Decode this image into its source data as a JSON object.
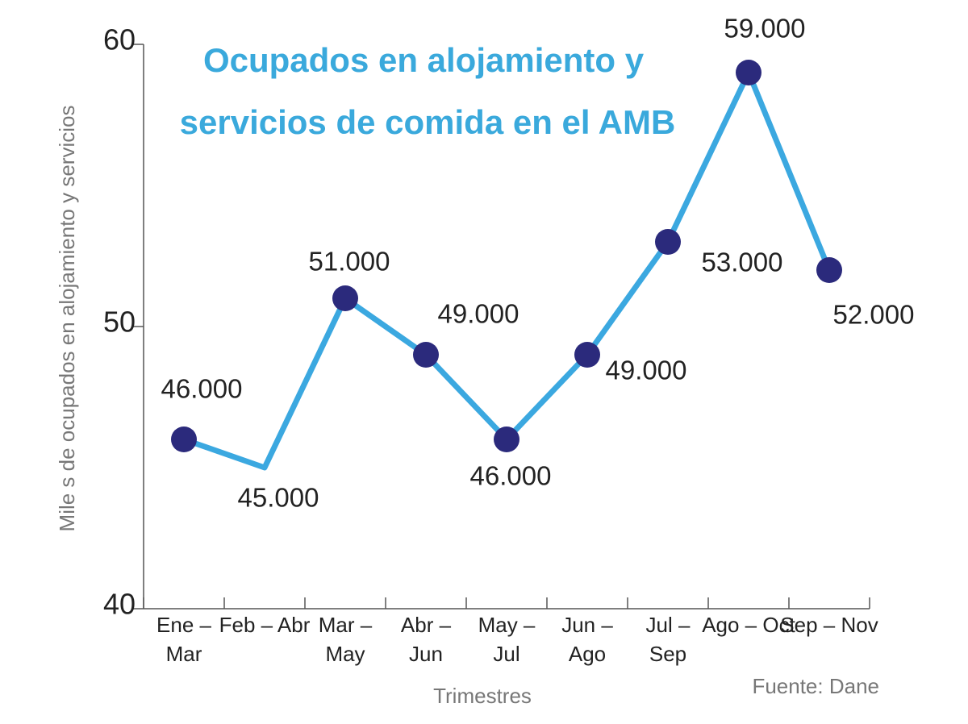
{
  "chart_data": {
    "type": "line",
    "title": [
      "Ocupados en alojamiento y",
      "servicios de comida en el AMB"
    ],
    "y_label": "Mile s de ocupados en alojamiento y servicios",
    "x_label": "Trimestres",
    "source": "Fuente: Dane",
    "categories": [
      [
        "Ene –",
        "Mar"
      ],
      [
        "Feb – Abr"
      ],
      [
        "Mar –",
        "May"
      ],
      [
        "Abr –",
        "Jun"
      ],
      [
        "May –",
        "Jul"
      ],
      [
        "Jun –",
        "Ago"
      ],
      [
        "Jul –",
        "Sep"
      ],
      [
        "Ago – Oct"
      ],
      [
        "Sep – Nov"
      ]
    ],
    "series": [
      {
        "name": "Ocupados",
        "color": "#3ba8e0",
        "marker_color": "#2b2a7c",
        "values": [
          46,
          45,
          51,
          49,
          46,
          49,
          53,
          59,
          52
        ],
        "value_labels": [
          "46.000",
          "45.000",
          "51.000",
          "49.000",
          "46.000",
          "49.000",
          "53.000",
          "59.000",
          "52.000"
        ],
        "markers": [
          true,
          false,
          true,
          true,
          true,
          true,
          true,
          true,
          true
        ]
      }
    ],
    "ylim": [
      40,
      60
    ],
    "yticks": [
      40,
      50,
      60
    ],
    "grid": false
  }
}
